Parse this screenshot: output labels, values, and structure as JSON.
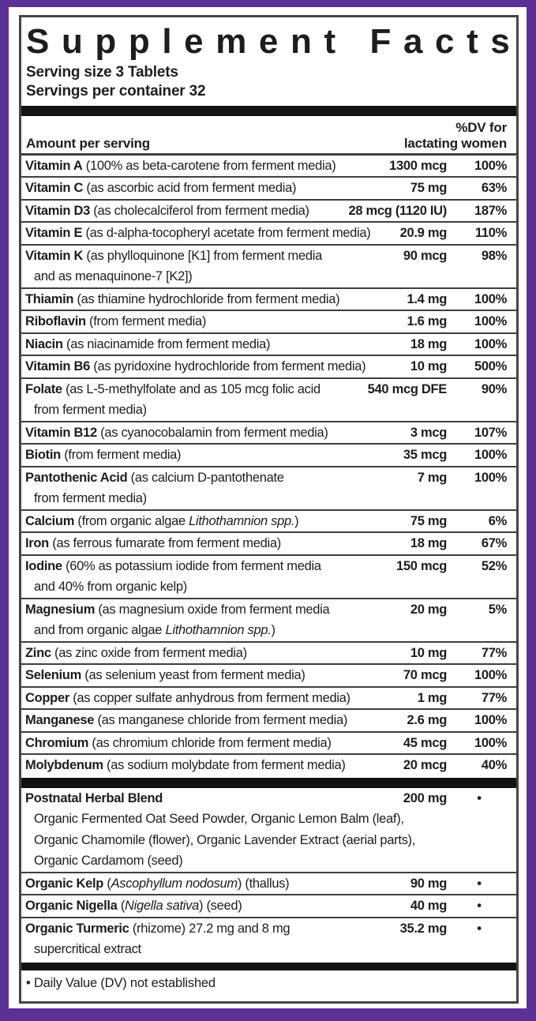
{
  "colors": {
    "frame_purple": "#5c3195",
    "panel_border": "#46444a",
    "text": "#1f1c1d",
    "separator": "#3f3e41",
    "thick_bar": "#141313",
    "panel_background": "#ffffff"
  },
  "panel": {
    "title": "Supplement Facts",
    "serving_size": "Serving size 3 Tablets",
    "servings_per_container": "Servings per container 32",
    "column_header": {
      "amount_label": "Amount per serving",
      "dv_line1": "%DV for",
      "dv_line2": "lactating women"
    },
    "nutrient_rows": [
      {
        "name": "Vitamin A",
        "desc": "(100% as beta-carotene from ferment media)",
        "amount": "1300 mcg",
        "dv": "100%"
      },
      {
        "name": "Vitamin C",
        "desc": "(as ascorbic acid from ferment media)",
        "amount": "75 mg",
        "dv": "63%"
      },
      {
        "name": "Vitamin D3",
        "desc": "(as cholecalciferol from ferment media)",
        "amount": "28 mcg (1120 IU)",
        "dv": "187%"
      },
      {
        "name": "Vitamin E",
        "desc": "(as d-alpha-tocopheryl acetate from ferment media)",
        "amount": "20.9 mg",
        "dv": "110%"
      },
      {
        "name": "Vitamin K",
        "desc": "(as phylloquinone [K1] from ferment media",
        "line2": "and as menaquinone-7 [K2])",
        "amount": "90 mcg",
        "dv": "98%"
      },
      {
        "name": "Thiamin",
        "desc": "(as thiamine hydrochloride from ferment media)",
        "amount": "1.4 mg",
        "dv": "100%"
      },
      {
        "name": "Riboflavin",
        "desc": "(from ferment media)",
        "amount": "1.6 mg",
        "dv": "100%"
      },
      {
        "name": "Niacin",
        "desc": "(as niacinamide from ferment media)",
        "amount": "18 mg",
        "dv": "100%"
      },
      {
        "name": "Vitamin B6",
        "desc": "(as pyridoxine hydrochloride from ferment media)",
        "amount": "10 mg",
        "dv": "500%"
      },
      {
        "name": "Folate",
        "desc": "(as L-5-methylfolate and as 105 mcg folic acid",
        "line2": "from ferment media)",
        "amount": "540 mcg DFE",
        "dv": "90%"
      },
      {
        "name": "Vitamin B12",
        "desc": "(as cyanocobalamin from ferment media)",
        "amount": "3 mcg",
        "dv": "107%"
      },
      {
        "name": "Biotin",
        "desc": "(from ferment media)",
        "amount": "35 mcg",
        "dv": "100%"
      },
      {
        "name": "Pantothenic Acid",
        "desc": "(as calcium D-pantothenate",
        "line2": "from ferment media)",
        "amount": "7 mg",
        "dv": "100%"
      },
      {
        "name": "Calcium",
        "desc": "(from organic algae *Lithothamnion spp.*)",
        "amount": "75 mg",
        "dv": "6%"
      },
      {
        "name": "Iron",
        "desc": "(as ferrous fumarate from ferment media)",
        "amount": "18 mg",
        "dv": "67%"
      },
      {
        "name": "Iodine",
        "desc": "(60% as potassium iodide from ferment media",
        "line2": "and 40% from organic kelp)",
        "amount": "150 mcg",
        "dv": "52%"
      },
      {
        "name": "Magnesium",
        "desc": "(as magnesium oxide from ferment media",
        "line2": "and from organic algae *Lithothamnion spp.*)",
        "amount": "20 mg",
        "dv": "5%"
      },
      {
        "name": "Zinc",
        "desc": "(as zinc oxide from ferment media)",
        "amount": "10 mg",
        "dv": "77%"
      },
      {
        "name": "Selenium",
        "desc": "(as selenium yeast from ferment media)",
        "amount": "70 mcg",
        "dv": "100%"
      },
      {
        "name": "Copper",
        "desc": "(as copper sulfate anhydrous from ferment media)",
        "amount": "1 mg",
        "dv": "77%"
      },
      {
        "name": "Manganese",
        "desc": "(as manganese chloride from ferment media)",
        "amount": "2.6 mg",
        "dv": "100%"
      },
      {
        "name": "Chromium",
        "desc": "(as chromium chloride from ferment media)",
        "amount": "45 mcg",
        "dv": "100%"
      },
      {
        "name": "Molybdenum",
        "desc": "(as sodium molybdate from ferment media)",
        "amount": "20 mcg",
        "dv": "40%"
      }
    ],
    "herbal_rows": [
      {
        "name": "Postnatal Herbal Blend",
        "desc": "",
        "amount": "200 mg",
        "dv": "•",
        "sublines": [
          "Organic Fermented Oat Seed Powder, Organic Lemon Balm (leaf),",
          "Organic Chamomile (flower), Organic Lavender Extract (aerial parts),",
          "Organic Cardamom (seed)"
        ]
      },
      {
        "name": "Organic Kelp",
        "desc": "(*Ascophyllum nodosum*) (thallus)",
        "amount": "90 mg",
        "dv": "•"
      },
      {
        "name": "Organic Nigella",
        "desc": "(*Nigella sativa*) (seed)",
        "amount": "40 mg",
        "dv": "•"
      },
      {
        "name": "Organic Turmeric",
        "desc": "(rhizome) 27.2 mg and 8 mg",
        "line2": "supercritical extract",
        "amount": "35.2 mg",
        "dv": "•"
      }
    ],
    "footnote": {
      "bullet": "•",
      "text": "Daily Value (DV) not established"
    }
  }
}
